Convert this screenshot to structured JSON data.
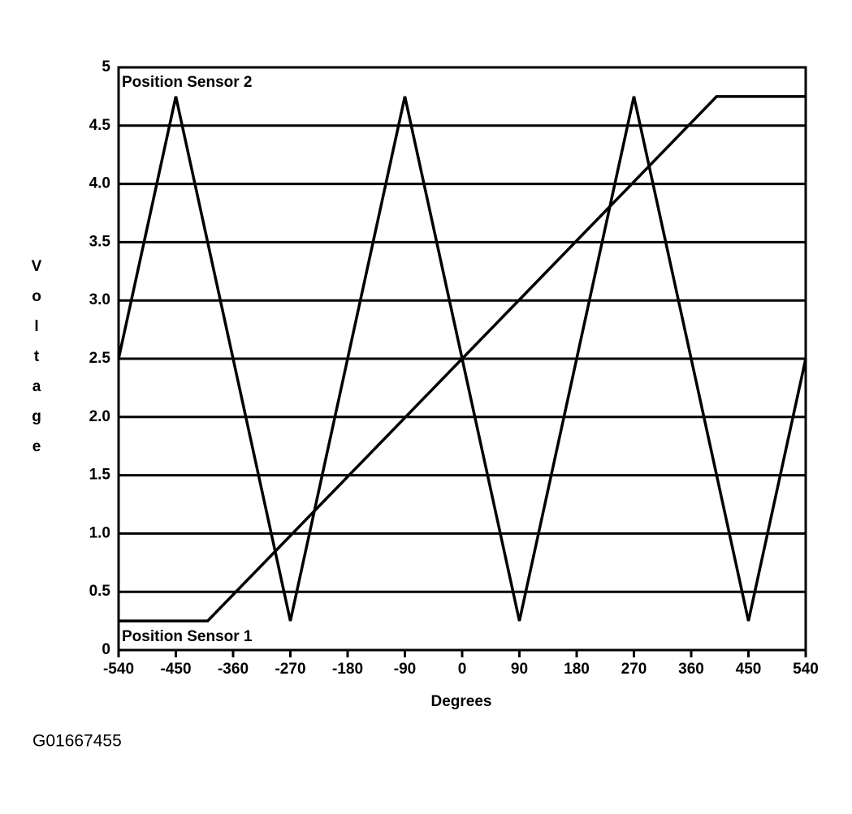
{
  "chart_data": {
    "type": "line",
    "xlabel": "Degrees",
    "ylabel": "Voltage",
    "xlim": [
      -540,
      540
    ],
    "ylim": [
      0,
      5
    ],
    "xticks": [
      -540,
      -450,
      -360,
      -270,
      -180,
      -90,
      0,
      90,
      180,
      270,
      360,
      450,
      540
    ],
    "yticks": [
      0,
      0.5,
      {
        "value": 1,
        "label": "1.0"
      },
      1.5,
      {
        "value": 2,
        "label": "2.0"
      },
      2.5,
      {
        "value": 3,
        "label": "3.0"
      },
      3.5,
      {
        "value": 4,
        "label": "4.0"
      },
      4.5,
      5
    ],
    "grid": true,
    "series": [
      {
        "name": "Position Sensor 2",
        "color": "#000000",
        "label_corner": "top-left",
        "x": [
          -540,
          -450,
          -270,
          -90,
          90,
          270,
          450,
          540
        ],
        "values": [
          2.5,
          4.75,
          0.25,
          4.75,
          0.25,
          4.75,
          0.25,
          2.5
        ]
      },
      {
        "name": "Position Sensor 1",
        "color": "#000000",
        "label_corner": "bottom-left",
        "x": [
          -540,
          -400,
          400,
          540
        ],
        "values": [
          0.25,
          0.25,
          4.75,
          4.75
        ]
      }
    ]
  },
  "figure_id": "G01667455"
}
